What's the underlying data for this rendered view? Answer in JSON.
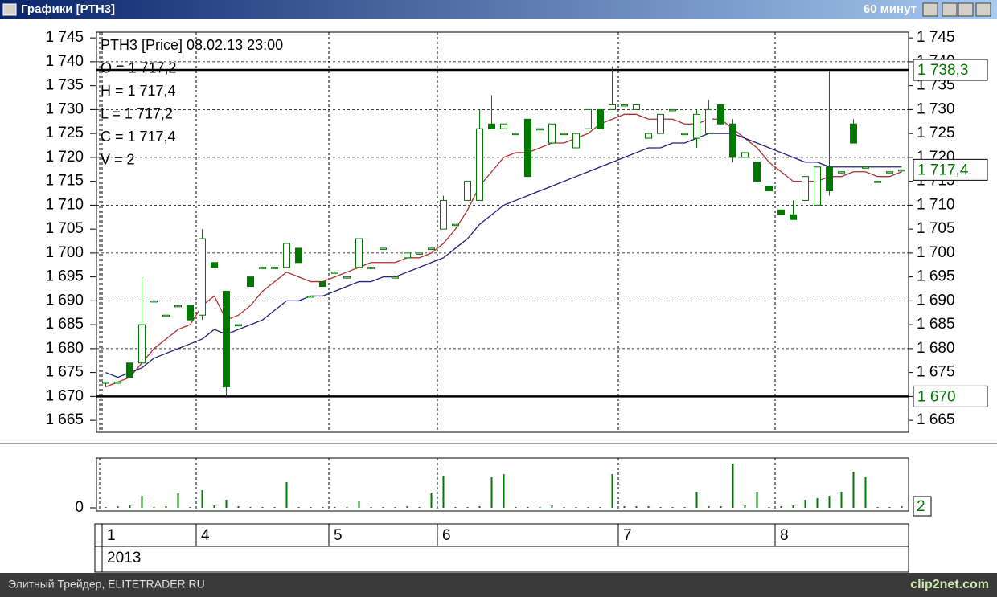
{
  "window": {
    "title": "Графики [PTH3]",
    "timeframe": "60 минут"
  },
  "footer": {
    "left": "Элитный Трейдер, ELITETRADER.RU",
    "right": "clip2net.com"
  },
  "chart_data": {
    "type": "candlestick",
    "info": [
      "PTH3 [Price] 08.02.13 23:00",
      "O = 1 717,2",
      "H = 1 717,4",
      "L = 1 717,2",
      "C = 1 717,4",
      "V = 2"
    ],
    "color": "#007800",
    "open": [
      1673,
      1673,
      1677,
      1677,
      1690,
      1687,
      1689,
      1689,
      1687,
      1698,
      1692,
      1685,
      1695,
      1697,
      1697,
      1697,
      1701,
      1691,
      1694,
      1696,
      1695,
      1697,
      1697,
      1701,
      1695,
      1699,
      1700,
      1701,
      1705,
      1706,
      1711,
      1711,
      1727,
      1726,
      1725,
      1728,
      1726,
      1723,
      1725,
      1722,
      1726,
      1730,
      1730,
      1731,
      1730,
      1724,
      1725,
      1730,
      1725,
      1724,
      1725,
      1731,
      1727,
      1720,
      1719,
      1714,
      1709,
      1708,
      1711,
      1710,
      1718,
      1717,
      1727,
      1718,
      1715,
      1717,
      1717.2
    ],
    "high": [
      1673,
      1673,
      1677,
      1695,
      1690,
      1687,
      1689,
      1689,
      1705,
      1698,
      1692,
      1685,
      1695,
      1697,
      1697,
      1702,
      1701,
      1691,
      1694,
      1696,
      1695,
      1703,
      1697,
      1701,
      1695,
      1700,
      1700,
      1701,
      1712,
      1706,
      1715,
      1730,
      1733,
      1727,
      1725,
      1728,
      1726,
      1727,
      1725,
      1725,
      1730,
      1730,
      1739,
      1731,
      1731,
      1725,
      1729,
      1730,
      1725,
      1730,
      1732,
      1731,
      1728,
      1721,
      1719,
      1714,
      1709,
      1711,
      1716,
      1718,
      1738,
      1717,
      1728,
      1718,
      1715,
      1717,
      1717.4
    ],
    "low": [
      1672,
      1673,
      1674,
      1677,
      1690,
      1687,
      1689,
      1686,
      1686,
      1697,
      1670,
      1685,
      1693,
      1697,
      1697,
      1697,
      1698,
      1691,
      1693,
      1696,
      1695,
      1697,
      1697,
      1701,
      1695,
      1699,
      1700,
      1701,
      1705,
      1706,
      1711,
      1711,
      1726,
      1726,
      1725,
      1716,
      1726,
      1723,
      1725,
      1722,
      1726,
      1726,
      1730,
      1731,
      1730,
      1724,
      1725,
      1730,
      1725,
      1722,
      1725,
      1727,
      1719,
      1720,
      1715,
      1713,
      1708,
      1707,
      1711,
      1710,
      1712,
      1717,
      1723,
      1718,
      1715,
      1717,
      1717.2
    ],
    "close": [
      1673,
      1673,
      1674,
      1685,
      1690,
      1687,
      1689,
      1686,
      1703,
      1697,
      1672,
      1685,
      1693,
      1697,
      1697,
      1702,
      1698,
      1691,
      1693,
      1696,
      1695,
      1703,
      1697,
      1701,
      1695,
      1700,
      1700,
      1701,
      1711,
      1706,
      1715,
      1726,
      1726,
      1727,
      1725,
      1716,
      1726,
      1727,
      1725,
      1725,
      1730,
      1726,
      1731,
      1731,
      1731,
      1725,
      1729,
      1730,
      1725,
      1729,
      1730,
      1727,
      1720,
      1721,
      1715,
      1713,
      1708,
      1707,
      1716,
      1718,
      1713,
      1717,
      1723,
      1718,
      1715,
      1717,
      1717.4
    ],
    "series": [
      {
        "color": "#b03030",
        "values": [
          1672,
          1673,
          1674,
          1677,
          1680,
          1682,
          1684,
          1685,
          1689,
          1691,
          1686,
          1687,
          1689,
          1692,
          1694,
          1696,
          1695,
          1694,
          1694,
          1695,
          1696,
          1697,
          1698,
          1698,
          1698,
          1699,
          1699,
          1700,
          1702,
          1705,
          1709,
          1714,
          1717,
          1720,
          1721,
          1721,
          1722,
          1723,
          1723,
          1724,
          1725,
          1727,
          1728,
          1729,
          1729,
          1728,
          1728,
          1728,
          1727,
          1727,
          1728,
          1728,
          1726,
          1724,
          1722,
          1719,
          1717,
          1715,
          1715,
          1715,
          1716,
          1716,
          1717,
          1717,
          1716,
          1716,
          1717
        ]
      },
      {
        "color": "#202080",
        "values": [
          1675,
          1674,
          1675,
          1676,
          1678,
          1679,
          1680,
          1681,
          1682,
          1684,
          1683,
          1684,
          1685,
          1686,
          1688,
          1690,
          1690,
          1691,
          1691,
          1692,
          1693,
          1694,
          1694,
          1695,
          1695,
          1696,
          1697,
          1698,
          1699,
          1701,
          1703,
          1706,
          1708,
          1710,
          1711,
          1712,
          1713,
          1714,
          1715,
          1716,
          1717,
          1718,
          1719,
          1720,
          1721,
          1722,
          1722,
          1723,
          1723,
          1724,
          1725,
          1725,
          1725,
          1724,
          1723,
          1722,
          1721,
          1720,
          1719,
          1719,
          1718,
          1718,
          1718,
          1718,
          1718,
          1718,
          1718
        ]
      }
    ],
    "ylim": [
      1662.5,
      1746.2
    ],
    "yticks": [
      {
        "value": 1745,
        "label": "1 745"
      },
      {
        "value": 1740,
        "label": "1 740"
      },
      {
        "value": 1735,
        "label": "1 735"
      },
      {
        "value": 1730,
        "label": "1 730"
      },
      {
        "value": 1725,
        "label": "1 725"
      },
      {
        "value": 1720,
        "label": "1 720"
      },
      {
        "value": 1715,
        "label": "1 715"
      },
      {
        "value": 1710,
        "label": "1 710"
      },
      {
        "value": 1705,
        "label": "1 705"
      },
      {
        "value": 1700,
        "label": "1 700"
      },
      {
        "value": 1695,
        "label": "1 695"
      },
      {
        "value": 1690,
        "label": "1 690"
      },
      {
        "value": 1685,
        "label": "1 685"
      },
      {
        "value": 1680,
        "label": "1 680"
      },
      {
        "value": 1675,
        "label": "1 675"
      },
      {
        "value": 1670,
        "label": "1 670"
      },
      {
        "value": 1665,
        "label": "1 665"
      }
    ],
    "levels": [
      {
        "value": 1738.3,
        "label": "1 738,3"
      },
      {
        "value": 1670,
        "label": "1 670"
      }
    ],
    "last_price": {
      "value": 1717.4,
      "label": "1 717,4"
    },
    "volume": {
      "values": [
        1,
        2,
        3,
        15,
        1,
        2,
        18,
        1,
        22,
        3,
        10,
        2,
        1,
        1,
        1,
        32,
        1,
        1,
        1,
        1,
        1,
        8,
        1,
        1,
        1,
        2,
        1,
        18,
        40,
        1,
        1,
        2,
        38,
        42,
        1,
        1,
        1,
        3,
        1,
        1,
        1,
        1,
        42,
        2,
        2,
        2,
        1,
        1,
        1,
        20,
        2,
        2,
        55,
        3,
        20,
        1,
        2,
        3,
        10,
        12,
        15,
        20,
        45,
        38,
        1,
        1,
        2
      ],
      "ylim": [
        0,
        60
      ],
      "yticks": [
        0
      ],
      "last": 2
    },
    "days": [
      {
        "label": "1",
        "start": 0
      },
      {
        "label": "4",
        "start": 8
      },
      {
        "label": "5",
        "start": 19
      },
      {
        "label": "6",
        "start": 28
      },
      {
        "label": "7",
        "start": 43
      },
      {
        "label": "8",
        "start": 56
      }
    ],
    "year": "2013"
  }
}
